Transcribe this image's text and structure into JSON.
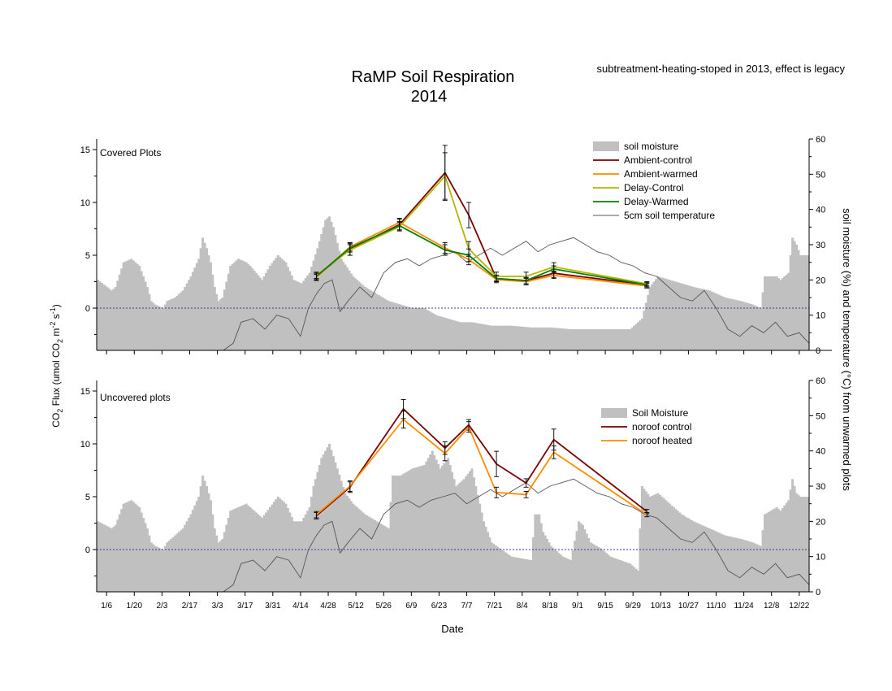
{
  "title_line1": "RaMP Soil Respiration",
  "title_line2": "2014",
  "note": "subtreatment-heating-stoped in 2013, effect is legacy",
  "xlabel": "Date",
  "ylabel_left_parts": [
    "CO",
    "2",
    " Flux (umol CO",
    "2",
    " m",
    "-2",
    " s",
    "-1",
    ")"
  ],
  "ylabel_right": "soil moisture (%) and temperature (°C) from unwarmed plots",
  "colors": {
    "moisture": "#c0c0c0",
    "temperature": "#555555",
    "ambient_control": "#7b0000",
    "ambient_warmed": "#ff8c00",
    "delay_control": "#b5b500",
    "delay_warmed": "#008000",
    "zero_line": "#3a3aa0"
  },
  "chart_data": [
    {
      "type": "line",
      "panel": "Covered Plots",
      "x_tick_labels": [
        "1/6",
        "1/20",
        "2/3",
        "2/17",
        "3/3",
        "3/17",
        "3/31",
        "4/14",
        "4/28",
        "5/12",
        "5/26",
        "6/9",
        "6/23",
        "7/7",
        "7/21",
        "8/4",
        "8/18",
        "9/1",
        "9/15",
        "9/29",
        "10/13",
        "10/27",
        "11/10",
        "11/24",
        "12/8",
        "12/22"
      ],
      "x_ticks_doy": [
        6,
        20,
        34,
        48,
        62,
        76,
        90,
        104,
        118,
        132,
        146,
        160,
        174,
        188,
        202,
        216,
        230,
        244,
        258,
        272,
        286,
        300,
        314,
        328,
        342,
        356
      ],
      "xlim_doy": [
        1,
        361
      ],
      "ylim_left": [
        -4,
        16
      ],
      "yticks_left": [
        0,
        5,
        10,
        15
      ],
      "ylim_right": [
        0,
        60
      ],
      "yticks_right": [
        0,
        10,
        20,
        30,
        40,
        50,
        60
      ],
      "zero_reference_line": 0,
      "legend_position": "top-right",
      "series": [
        {
          "name": "Ambient-control",
          "x_doy": [
            112,
            129,
            154,
            177,
            189,
            203,
            218,
            232,
            279
          ],
          "y": [
            3.0,
            5.6,
            7.9,
            12.8,
            8.8,
            2.8,
            2.6,
            3.3,
            2.2
          ],
          "err": [
            0.3,
            0.6,
            0.5,
            2.6,
            1.2,
            0.3,
            0.3,
            0.4,
            0.2
          ]
        },
        {
          "name": "Ambient-warmed",
          "x_doy": [
            112,
            129,
            154,
            177,
            189,
            203,
            218,
            232,
            279
          ],
          "y": [
            2.9,
            5.8,
            8.1,
            5.7,
            4.6,
            2.7,
            2.5,
            3.1,
            2.1
          ],
          "err": [
            0.3,
            0.4,
            0.4,
            0.5,
            0.5,
            0.3,
            0.3,
            0.3,
            0.2
          ]
        },
        {
          "name": "Delay-Control",
          "x_doy": [
            112,
            129,
            154,
            177,
            189,
            203,
            218,
            232,
            279
          ],
          "y": [
            3.1,
            5.5,
            7.7,
            12.5,
            5.6,
            3.0,
            3.0,
            3.9,
            2.3
          ],
          "err": [
            0.3,
            0.5,
            0.4,
            2.2,
            0.7,
            0.4,
            0.4,
            0.4,
            0.2
          ]
        },
        {
          "name": "Delay-Warmed",
          "x_doy": [
            112,
            129,
            154,
            177,
            189,
            203,
            218,
            232,
            279
          ],
          "y": [
            3.0,
            5.7,
            7.8,
            5.5,
            5.0,
            2.8,
            2.6,
            3.7,
            2.2
          ],
          "err": [
            0.3,
            0.4,
            0.4,
            0.5,
            0.6,
            0.3,
            0.3,
            0.3,
            0.2
          ]
        }
      ],
      "moisture": {
        "name": "soil moisture",
        "x_doy": [
          1,
          8,
          10,
          14,
          18,
          22,
          26,
          28,
          30,
          34,
          36,
          40,
          44,
          48,
          52,
          54,
          56,
          58,
          60,
          62,
          64,
          68,
          72,
          76,
          78,
          84,
          88,
          92,
          96,
          100,
          104,
          108,
          112,
          116,
          118,
          120,
          124,
          130,
          136,
          142,
          148,
          154,
          160,
          166,
          172,
          178,
          184,
          190,
          200,
          210,
          220,
          230,
          240,
          250,
          260,
          270,
          276,
          280,
          284,
          290,
          296,
          302,
          310,
          318,
          326,
          332,
          336,
          338,
          344,
          346,
          350,
          352,
          354,
          356
        ],
        "y": [
          20,
          17,
          18,
          25,
          26,
          24,
          18,
          14,
          13,
          12,
          14,
          15,
          17,
          21,
          26,
          32,
          29,
          25,
          18,
          14,
          15,
          24,
          26,
          25,
          24,
          20,
          24,
          27,
          25,
          20,
          19,
          22,
          29,
          37,
          38,
          35,
          26,
          21,
          18,
          16,
          14,
          13,
          12,
          12,
          10,
          9,
          8,
          8,
          7,
          7,
          6.5,
          6.5,
          6,
          6,
          6,
          6,
          9,
          18,
          21,
          20,
          19,
          18,
          17,
          15,
          14,
          13,
          12,
          21,
          21,
          20,
          22,
          32,
          30,
          27
        ]
      },
      "temperature": {
        "name": "5cm soil temperature",
        "x_doy": [
          1,
          30,
          60,
          65,
          70,
          74,
          80,
          86,
          92,
          98,
          104,
          108,
          112,
          116,
          120,
          124,
          128,
          134,
          140,
          146,
          152,
          158,
          164,
          170,
          176,
          182,
          188,
          194,
          200,
          206,
          212,
          218,
          224,
          230,
          236,
          242,
          248,
          254,
          260,
          266,
          272,
          278,
          284,
          290,
          296,
          302,
          308,
          314,
          320,
          326,
          332,
          338,
          344,
          350,
          356,
          361
        ],
        "y": [
          0,
          0,
          0,
          0,
          2,
          8,
          9,
          6,
          10,
          9,
          4,
          12,
          16,
          19,
          20,
          11,
          14,
          18,
          15,
          22,
          25,
          26,
          24,
          26,
          27,
          28,
          25,
          27,
          29,
          27,
          29,
          31,
          28,
          30,
          31,
          32,
          30,
          28,
          27,
          25,
          24,
          22,
          21,
          18,
          15,
          14,
          17,
          12,
          6,
          4,
          7,
          5,
          8,
          4,
          5,
          2
        ]
      }
    },
    {
      "type": "line",
      "panel": "Uncovered plots",
      "x_tick_labels": [
        "1/6",
        "1/20",
        "2/3",
        "2/17",
        "3/3",
        "3/17",
        "3/31",
        "4/14",
        "4/28",
        "5/12",
        "5/26",
        "6/9",
        "6/23",
        "7/7",
        "7/21",
        "8/4",
        "8/18",
        "9/1",
        "9/15",
        "9/29",
        "10/13",
        "10/27",
        "11/10",
        "11/24",
        "12/8",
        "12/22"
      ],
      "xlim_doy": [
        1,
        361
      ],
      "ylim_left": [
        -4,
        16
      ],
      "yticks_left": [
        0,
        5,
        10,
        15
      ],
      "ylim_right": [
        0,
        60
      ],
      "yticks_right": [
        0,
        10,
        20,
        30,
        40,
        50,
        60
      ],
      "legend_position": "top-right",
      "series": [
        {
          "name": "noroof control",
          "x_doy": [
            112,
            129,
            156,
            177,
            189,
            203,
            218,
            232,
            279
          ],
          "y": [
            3.2,
            5.9,
            13.3,
            9.6,
            11.8,
            8.1,
            6.3,
            10.4,
            3.6
          ],
          "err": [
            0.3,
            0.5,
            0.9,
            0.6,
            0.5,
            1.2,
            0.4,
            1.0,
            0.2
          ]
        },
        {
          "name": "noroof heated",
          "x_doy": [
            112,
            129,
            156,
            177,
            189,
            203,
            218,
            232,
            279
          ],
          "y": [
            3.3,
            6.0,
            12.3,
            9.1,
            11.6,
            5.4,
            5.2,
            9.2,
            3.3
          ],
          "err": [
            0.3,
            0.5,
            0.8,
            0.7,
            0.5,
            0.5,
            0.3,
            0.6,
            0.2
          ]
        }
      ],
      "moisture": {
        "name": "Soil Moisture",
        "x_doy": [
          1,
          8,
          10,
          14,
          18,
          22,
          26,
          28,
          30,
          34,
          36,
          40,
          44,
          48,
          52,
          54,
          56,
          58,
          60,
          62,
          64,
          68,
          72,
          76,
          78,
          84,
          88,
          92,
          96,
          100,
          104,
          108,
          110,
          114,
          118,
          122,
          126,
          130,
          136,
          142,
          148,
          150,
          154,
          160,
          166,
          170,
          174,
          178,
          182,
          186,
          190,
          196,
          200,
          210,
          220,
          222,
          224,
          226,
          230,
          236,
          240,
          244,
          246,
          250,
          256,
          260,
          270,
          274,
          276,
          280,
          284,
          290,
          296,
          302,
          310,
          318,
          326,
          332,
          336,
          338,
          344,
          346,
          350,
          352,
          354,
          356
        ],
        "y": [
          20,
          18,
          19,
          25,
          26,
          24,
          18,
          14,
          13,
          12,
          14,
          16,
          18,
          22,
          27,
          33,
          30,
          26,
          18,
          14,
          15,
          23,
          24,
          25,
          24,
          21,
          24,
          27,
          25,
          20,
          20,
          24,
          30,
          38,
          42,
          35,
          28,
          25,
          22,
          20,
          18,
          33,
          33,
          35,
          36,
          40,
          35,
          38,
          30,
          32,
          35,
          20,
          14,
          10,
          9,
          22,
          22,
          17,
          13,
          10,
          9,
          20,
          19,
          14,
          12,
          10,
          8,
          6,
          30,
          27,
          28,
          25,
          22,
          20,
          18,
          16,
          15,
          14,
          13,
          22,
          24,
          23,
          26,
          32,
          28,
          27
        ]
      },
      "temperature": {
        "name": "5cm soil temperature",
        "x_doy": [
          1,
          30,
          60,
          65,
          70,
          74,
          80,
          86,
          92,
          98,
          104,
          108,
          112,
          116,
          120,
          124,
          128,
          134,
          140,
          146,
          152,
          158,
          164,
          170,
          176,
          182,
          188,
          194,
          200,
          206,
          212,
          218,
          224,
          230,
          236,
          242,
          248,
          254,
          260,
          266,
          272,
          278,
          284,
          290,
          296,
          302,
          308,
          314,
          320,
          326,
          332,
          338,
          344,
          350,
          356,
          361
        ],
        "y": [
          0,
          0,
          0,
          0,
          2,
          8,
          9,
          6,
          10,
          9,
          4,
          12,
          16,
          19,
          20,
          11,
          14,
          18,
          15,
          22,
          25,
          26,
          24,
          26,
          27,
          28,
          25,
          27,
          29,
          27,
          29,
          31,
          28,
          30,
          31,
          32,
          30,
          28,
          27,
          25,
          24,
          22,
          21,
          18,
          15,
          14,
          17,
          12,
          6,
          4,
          7,
          5,
          8,
          4,
          5,
          2
        ]
      }
    }
  ]
}
